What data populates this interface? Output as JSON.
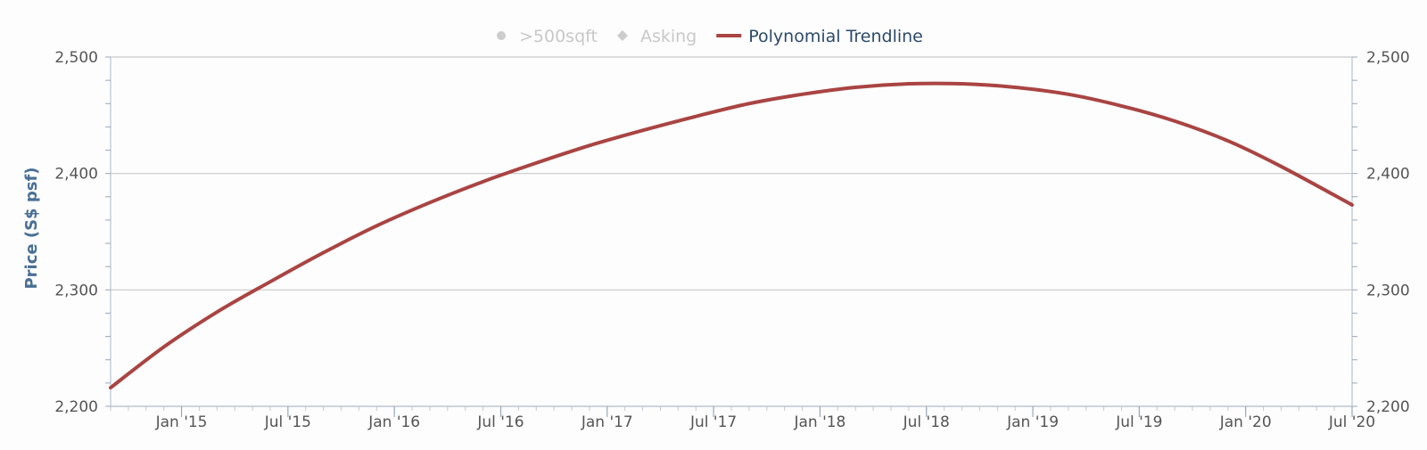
{
  "chart_data": {
    "type": "line",
    "ylabel": "Price (S$ psf)",
    "ylim": [
      2200,
      2500
    ],
    "y_ticks": [
      "2,200",
      "2,300",
      "2,400",
      "2,500"
    ],
    "y_ticks_right": [
      "2,200",
      "2,300",
      "2,400",
      "2,500"
    ],
    "x_range": [
      "2014-09",
      "2020-07"
    ],
    "x_ticks": [
      {
        "date": "2015-01",
        "label": "Jan '15"
      },
      {
        "date": "2015-07",
        "label": "Jul '15"
      },
      {
        "date": "2016-01",
        "label": "Jan '16"
      },
      {
        "date": "2016-07",
        "label": "Jul '16"
      },
      {
        "date": "2017-01",
        "label": "Jan '17"
      },
      {
        "date": "2017-07",
        "label": "Jul '17"
      },
      {
        "date": "2018-01",
        "label": "Jan '18"
      },
      {
        "date": "2018-07",
        "label": "Jul '18"
      },
      {
        "date": "2019-01",
        "label": "Jan '19"
      },
      {
        "date": "2019-07",
        "label": "Jul '19"
      },
      {
        "date": "2020-01",
        "label": "Jan '20"
      },
      {
        "date": "2020-07",
        "label": "Jul '20"
      }
    ],
    "grid": true,
    "legend": {
      "placement": "top-center",
      "items": [
        {
          "label": ">500sqft",
          "marker": "circle",
          "color": "#cccccc",
          "active": false
        },
        {
          "label": "Asking",
          "marker": "diamond",
          "color": "#cccccc",
          "active": false
        },
        {
          "label": "Polynomial Trendline",
          "marker": "line",
          "color": "#a94442",
          "active": true
        }
      ]
    },
    "series": [
      {
        "name": "Polynomial Trendline",
        "color": "#a94442",
        "x": [
          "2014-09",
          "2014-12",
          "2015-03",
          "2015-06",
          "2015-09",
          "2015-12",
          "2016-03",
          "2016-06",
          "2016-09",
          "2016-12",
          "2017-03",
          "2017-06",
          "2017-09",
          "2017-12",
          "2018-03",
          "2018-06",
          "2018-09",
          "2018-12",
          "2019-03",
          "2019-06",
          "2019-09",
          "2019-12",
          "2020-03",
          "2020-07"
        ],
        "y": [
          2216,
          2251,
          2281,
          2307,
          2332,
          2355,
          2375,
          2393,
          2409,
          2424,
          2437,
          2449,
          2460,
          2468,
          2474,
          2477,
          2477,
          2474,
          2468,
          2458,
          2445,
          2428,
          2406,
          2373
        ]
      }
    ]
  }
}
